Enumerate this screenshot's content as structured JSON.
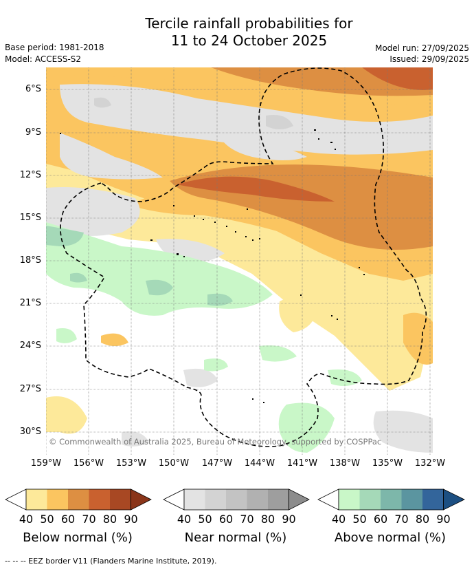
{
  "header": {
    "title_line1": "Tercile rainfall probabilities for",
    "title_line2": "11 to 24 October 2025",
    "base_period": "Base period: 1981-2018",
    "model": "Model: ACCESS-S2",
    "model_run": "Model run: 27/09/2025",
    "issued": "Issued: 29/09/2025"
  },
  "map": {
    "lat_labels": [
      "6°S",
      "9°S",
      "12°S",
      "15°S",
      "18°S",
      "21°S",
      "24°S",
      "27°S",
      "30°S"
    ],
    "lon_labels": [
      "159°W",
      "156°W",
      "153°W",
      "150°W",
      "147°W",
      "144°W",
      "141°W",
      "138°W",
      "135°W",
      "132°W"
    ],
    "copyright": "© Commonwealth of Australia 2025, Bureau of Meteorology, supported by COSPPac"
  },
  "colorbars": [
    {
      "title": "Below normal (%)",
      "ticks": [
        "40",
        "50",
        "60",
        "70",
        "80",
        "90"
      ],
      "colors": [
        "#fde99a",
        "#fbc560",
        "#dd8f42",
        "#c9612f",
        "#a84823",
        "#8a3519"
      ]
    },
    {
      "title": "Near normal (%)",
      "ticks": [
        "40",
        "50",
        "60",
        "70",
        "80",
        "90"
      ],
      "colors": [
        "#e3e3e3",
        "#d3d3d3",
        "#c3c3c3",
        "#b1b1b1",
        "#9e9e9e",
        "#8c8c8c"
      ]
    },
    {
      "title": "Above normal (%)",
      "ticks": [
        "40",
        "50",
        "60",
        "70",
        "80",
        "90"
      ],
      "colors": [
        "#c9f7c8",
        "#a5d9b8",
        "#7db7aa",
        "#5b95a0",
        "#33659b",
        "#1c4f82"
      ]
    }
  ],
  "footer": {
    "eez_note": "--  --  -- EEZ border V11 (Flanders Marine Institute, 2019)."
  }
}
